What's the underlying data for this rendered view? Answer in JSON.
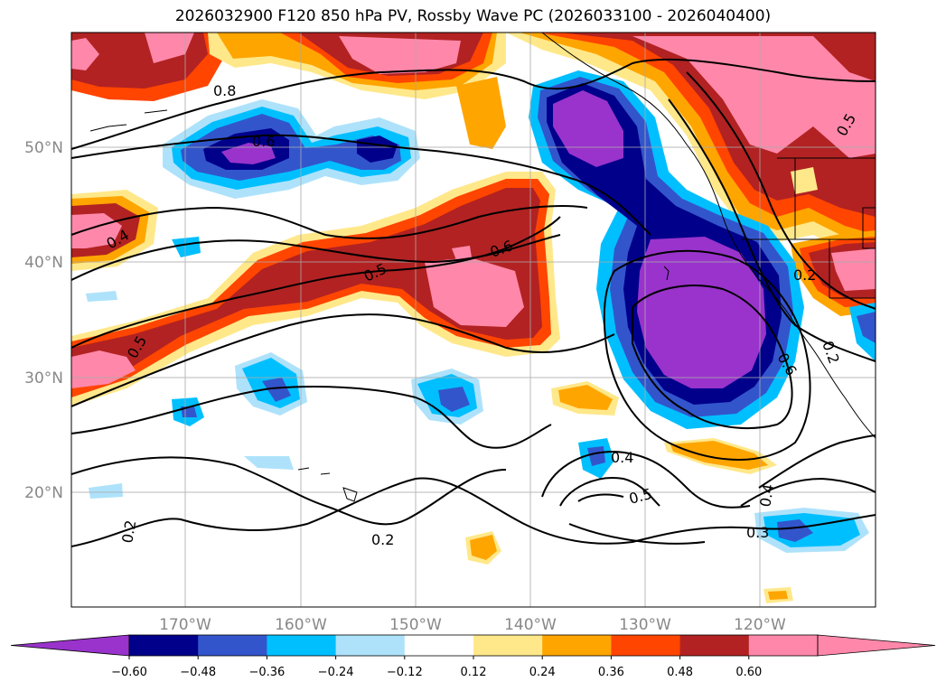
{
  "title": "2026032900 F120 850 hPa PV, Rossby Wave PC (2026033100 - 2026040400)",
  "map": {
    "lon_ticks": [
      "170°W",
      "160°W",
      "150°W",
      "140°W",
      "130°W",
      "120°W"
    ],
    "lat_ticks": [
      "50°N",
      "40°N",
      "30°N",
      "20°N"
    ],
    "gridlines": true,
    "contour_labels": [
      "0.8",
      "0.6",
      "0.4",
      "0.5",
      "0.6",
      "0.5",
      "0.2",
      "0.4",
      "0.5",
      "0.2",
      "0.3",
      "0.4",
      "0.2",
      "0.6",
      "0.2",
      "0.5"
    ]
  },
  "colorbar": {
    "ticks": [
      "−0.60",
      "−0.48",
      "−0.36",
      "−0.24",
      "−0.12",
      "0.12",
      "0.24",
      "0.36",
      "0.48",
      "0.60"
    ],
    "colors": [
      "#9933cc",
      "#00008b",
      "#3355cc",
      "#00bfff",
      "#aee2fb",
      "#ffffff",
      "#ffe88a",
      "#ffa500",
      "#ff4500",
      "#b22222",
      "#ff88aa",
      "#ff88aa"
    ],
    "extend": "both"
  }
}
